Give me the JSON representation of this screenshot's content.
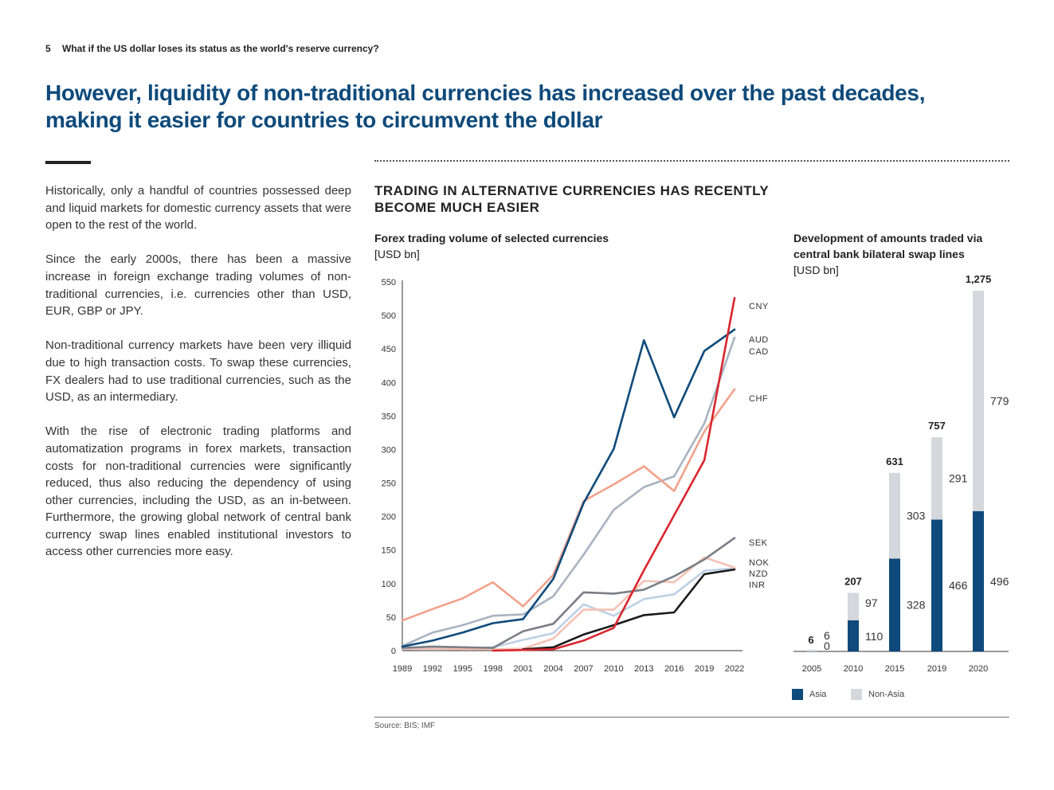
{
  "header": {
    "page_number": "5",
    "title": "What if the US dollar loses its status as the world's reserve currency?"
  },
  "headline": "However, liquidity of non-traditional currencies has increased over the past decades, making it easier for countries to circumvent the dollar",
  "body": {
    "paragraphs": [
      "Historically, only a handful of countries possessed deep and liquid markets for domestic currency assets that were open to the rest of the world.",
      "Since the early 2000s, there has been a massive increase in foreign exchange trading volumes of non-traditional currencies, i.e. currencies other than USD, EUR, GBP or JPY.",
      "Non-traditional currency markets have been very illiquid due to high transaction costs. To swap these currencies, FX dealers had to use traditional currencies, such as the USD, as an intermediary.",
      "With the rise of electronic trading platforms and automatization programs in forex markets, transaction costs for non-traditional currencies were significantly reduced, thus also reducing the dependency of using other currencies, including the USD, as an in-between. Furthermore, the growing global network of central bank currency swap lines enabled institutional investors to access other currencies more easy."
    ]
  },
  "chart_section": {
    "title": "Trading in alternative currencies has recently become much easier",
    "line_subtitle_bold": "Forex trading volume of selected currencies",
    "line_subtitle_unit": " [USD bn]",
    "bar_subtitle_bold": "Development of amounts traded via central bank bilateral swap lines",
    "bar_subtitle_unit": "[USD bn]"
  },
  "source": "Source: BIS; IMF",
  "chart_data": [
    {
      "type": "line",
      "title": "Forex trading volume of selected currencies [USD bn]",
      "x": [
        "1989",
        "1992",
        "1995",
        "1998",
        "2001",
        "2004",
        "2007",
        "2010",
        "2013",
        "2016",
        "2019",
        "2022"
      ],
      "ylim": [
        0,
        550
      ],
      "yticks": [
        0,
        50,
        100,
        150,
        200,
        250,
        300,
        350,
        400,
        450,
        500,
        550
      ],
      "series": [
        {
          "name": "CNY",
          "color": "#d9262e",
          "values": [
            null,
            null,
            null,
            0,
            1,
            2,
            15,
            34,
            120,
            202,
            284,
            526
          ]
        },
        {
          "name": "AUD",
          "color": "#0e4a7b",
          "values": [
            6,
            15,
            27,
            41,
            47,
            107,
            220,
            301,
            463,
            348,
            447,
            479
          ]
        },
        {
          "name": "CAD",
          "color": "#a9b3c0",
          "values": [
            7,
            27,
            38,
            52,
            54,
            81,
            143,
            210,
            244,
            260,
            339,
            467
          ]
        },
        {
          "name": "CHF",
          "color": "#f2a18b",
          "values": [
            45,
            62,
            78,
            102,
            66,
            113,
            223,
            248,
            275,
            238,
            327,
            390
          ]
        },
        {
          "name": "SEK",
          "color": "#7a7f86",
          "values": [
            4,
            6,
            5,
            4,
            29,
            40,
            87,
            85,
            91,
            111,
            136,
            168
          ]
        },
        {
          "name": "NOK",
          "color": "#f6c1b4",
          "values": [
            3,
            3,
            2,
            2,
            3,
            18,
            61,
            61,
            104,
            102,
            139,
            124
          ]
        },
        {
          "name": "NZD",
          "color": "#bdd0e4",
          "values": [
            2,
            3,
            3,
            5,
            16,
            26,
            69,
            52,
            77,
            84,
            119,
            123
          ]
        },
        {
          "name": "INR",
          "color": "#1a1a1a",
          "values": [
            null,
            null,
            null,
            null,
            2,
            5,
            24,
            38,
            53,
            57,
            114,
            121
          ]
        }
      ]
    },
    {
      "type": "bar",
      "title": "Development of amounts traded via central bank bilateral swap lines [USD bn]",
      "categories": [
        "2005",
        "2010",
        "2015",
        "2019",
        "2020"
      ],
      "totals": [
        "6",
        "207",
        "631",
        "757",
        "1,275"
      ],
      "series": [
        {
          "name": "Asia",
          "color": "#0e4a7b",
          "values": [
            0,
            110,
            328,
            466,
            496
          ]
        },
        {
          "name": "Non-Asia",
          "color": "#d4d8dd",
          "values": [
            6,
            97,
            303,
            291,
            779
          ]
        }
      ],
      "legend": [
        "Asia",
        "Non-Asia"
      ]
    }
  ]
}
